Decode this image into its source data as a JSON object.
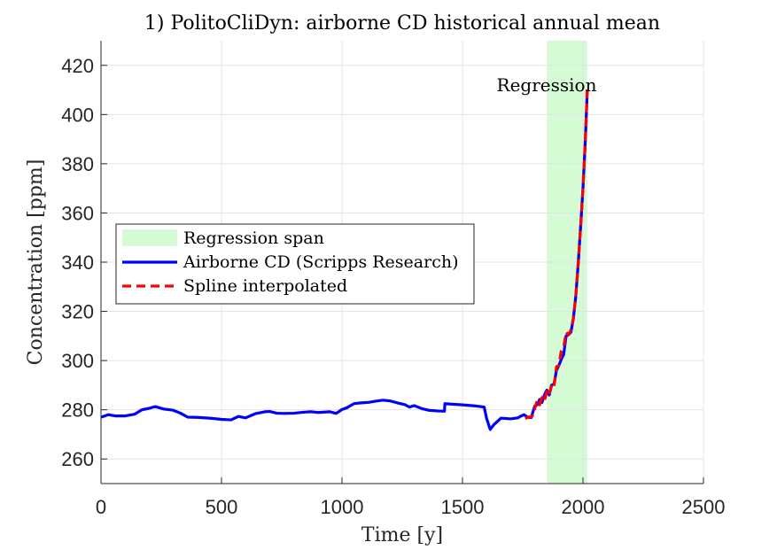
{
  "chart_data": {
    "type": "line",
    "title": "1) PolitoCliDyn: airborne CD historical annual mean",
    "xlabel": "Time [y]",
    "ylabel": "Concentration [ppm]",
    "xlim": [
      0,
      2500
    ],
    "ylim": [
      250,
      430
    ],
    "xticks": [
      0,
      500,
      1000,
      1500,
      2000,
      2500
    ],
    "yticks": [
      260,
      280,
      300,
      320,
      340,
      360,
      380,
      400,
      420
    ],
    "grid": true,
    "legend_position": "center-left",
    "legend": {
      "span_label": "Regression span",
      "series1_label": "Airborne CD (Scripps Research)",
      "series2_label": "Spline interpolated"
    },
    "annotation": "Regression",
    "regression_span": [
      1850,
      2018
    ],
    "colors": {
      "span": "#d5fbd5",
      "series1": "#0000ff",
      "series2": "#ff0000",
      "grid": "#e3e3e3",
      "axis": "#262626"
    },
    "series": [
      {
        "name": "Airborne CD (Scripps Research)",
        "x": [
          1,
          30,
          60,
          100,
          140,
          170,
          200,
          225,
          260,
          300,
          330,
          360,
          400,
          450,
          500,
          540,
          570,
          600,
          640,
          680,
          700,
          730,
          760,
          800,
          840,
          870,
          900,
          950,
          975,
          1000,
          1020,
          1050,
          1080,
          1110,
          1140,
          1170,
          1200,
          1230,
          1260,
          1280,
          1300,
          1330,
          1360,
          1400,
          1425,
          1427,
          1450,
          1500,
          1550,
          1590,
          1600,
          1615,
          1630,
          1660,
          1700,
          1730,
          1740,
          1755,
          1770,
          1785,
          1800,
          1810,
          1820,
          1830,
          1840,
          1850,
          1860,
          1870,
          1880,
          1890,
          1900,
          1910,
          1920,
          1930,
          1940,
          1950,
          1960,
          1970,
          1980,
          1990,
          2000,
          2010,
          2018
        ],
        "y": [
          277.0,
          278.0,
          277.5,
          277.5,
          278.2,
          280.0,
          280.6,
          281.3,
          280.3,
          279.8,
          278.6,
          277.0,
          276.9,
          276.6,
          276.1,
          275.9,
          277.3,
          276.7,
          278.4,
          279.2,
          279.3,
          278.6,
          278.5,
          278.6,
          279.0,
          279.2,
          278.9,
          279.2,
          278.5,
          280.1,
          280.8,
          282.5,
          282.8,
          283.0,
          283.5,
          283.9,
          283.6,
          282.8,
          282.1,
          281.1,
          281.7,
          280.5,
          279.8,
          279.5,
          279.4,
          282.5,
          282.3,
          282.0,
          281.6,
          281.1,
          276.5,
          272.0,
          273.9,
          276.6,
          276.3,
          276.7,
          277.3,
          278.0,
          277.0,
          276.8,
          281.5,
          282.0,
          284.2,
          283.0,
          286.0,
          288.0,
          286.0,
          290.0,
          290.5,
          296.0,
          298.0,
          300.5,
          302.5,
          310.0,
          310.5,
          311.5,
          317.0,
          326.0,
          339.0,
          354.0,
          370.0,
          390.0,
          410.0
        ]
      },
      {
        "name": "Spline interpolated",
        "x": [
          1760,
          1775,
          1790,
          1800,
          1810,
          1820,
          1830,
          1840,
          1850,
          1860,
          1870,
          1880,
          1890,
          1900,
          1910,
          1920,
          1930,
          1940,
          1950,
          1960,
          1970,
          1980,
          1990,
          2000,
          2010,
          2018
        ],
        "y": [
          276.5,
          277.0,
          277.5,
          280.5,
          283.8,
          282.0,
          285.0,
          283.5,
          287.5,
          286.0,
          290.5,
          289.5,
          297.5,
          298.0,
          304.0,
          305.5,
          311.5,
          310.5,
          312.5,
          317.0,
          326.0,
          339.0,
          354.0,
          370.0,
          390.0,
          411.0
        ]
      }
    ]
  }
}
